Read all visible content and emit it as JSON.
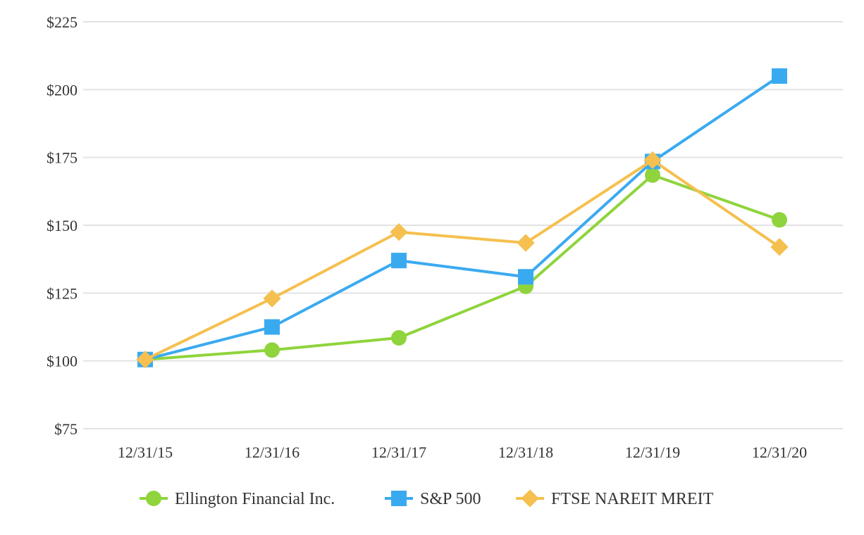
{
  "chart_data": {
    "type": "line",
    "title": "",
    "xlabel": "",
    "ylabel": "",
    "categories": [
      "12/31/15",
      "12/31/16",
      "12/31/17",
      "12/31/18",
      "12/31/19",
      "12/31/20"
    ],
    "ylim": [
      75,
      225
    ],
    "yticks": [
      75,
      100,
      125,
      150,
      175,
      200,
      225
    ],
    "ytick_labels": [
      "$75",
      "$100",
      "$125",
      "$150",
      "$175",
      "$200",
      "$225"
    ],
    "grid": true,
    "legend_position": "bottom",
    "series": [
      {
        "name": "Ellington Financial Inc.",
        "values": [
          100.5,
          104,
          108.5,
          127.5,
          168.5,
          152
        ],
        "color": "#8fd43c",
        "marker": "circle"
      },
      {
        "name": "S&P 500",
        "values": [
          100.5,
          112.5,
          137,
          131,
          173.5,
          205
        ],
        "color": "#3aaaf0",
        "marker": "square"
      },
      {
        "name": "FTSE NAREIT MREIT",
        "values": [
          100.5,
          123,
          147.5,
          143.5,
          174,
          142
        ],
        "color": "#f5c04f",
        "marker": "diamond"
      }
    ]
  }
}
